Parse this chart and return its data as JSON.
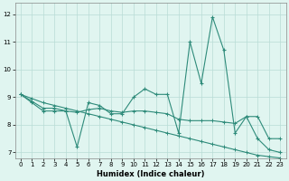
{
  "x": [
    0,
    1,
    2,
    3,
    4,
    5,
    6,
    7,
    8,
    9,
    10,
    11,
    12,
    13,
    14,
    15,
    16,
    17,
    18,
    19,
    20,
    21,
    22,
    23
  ],
  "line_volatile": [
    9.1,
    8.8,
    8.5,
    8.5,
    8.5,
    7.2,
    8.8,
    8.7,
    8.4,
    8.4,
    9.0,
    9.3,
    9.1,
    9.1,
    7.7,
    11.0,
    9.5,
    11.9,
    10.7,
    7.7,
    8.3,
    7.5,
    7.1,
    7.0
  ],
  "line_middle": [
    9.1,
    8.85,
    8.6,
    8.6,
    8.5,
    8.45,
    8.55,
    8.6,
    8.5,
    8.45,
    8.5,
    8.5,
    8.45,
    8.4,
    8.2,
    8.15,
    8.15,
    8.15,
    8.1,
    8.05,
    8.3,
    8.3,
    7.5,
    7.5
  ],
  "line_trend": [
    9.1,
    8.95,
    8.8,
    8.7,
    8.6,
    8.5,
    8.4,
    8.3,
    8.2,
    8.1,
    8.0,
    7.9,
    7.8,
    7.7,
    7.6,
    7.5,
    7.4,
    7.3,
    7.2,
    7.1,
    7.0,
    6.9,
    6.85,
    6.8
  ],
  "color": "#2e8b7a",
  "bg_color": "#e0f5f0",
  "grid_color": "#b8dcd6",
  "xlabel": "Humidex (Indice chaleur)",
  "xlim": [
    -0.5,
    23.5
  ],
  "ylim": [
    6.8,
    12.4
  ],
  "yticks": [
    7,
    8,
    9,
    10,
    11,
    12
  ],
  "xticks": [
    0,
    1,
    2,
    3,
    4,
    5,
    6,
    7,
    8,
    9,
    10,
    11,
    12,
    13,
    14,
    15,
    16,
    17,
    18,
    19,
    20,
    21,
    22,
    23
  ],
  "tick_fontsize": 5.0,
  "xlabel_fontsize": 6.0
}
